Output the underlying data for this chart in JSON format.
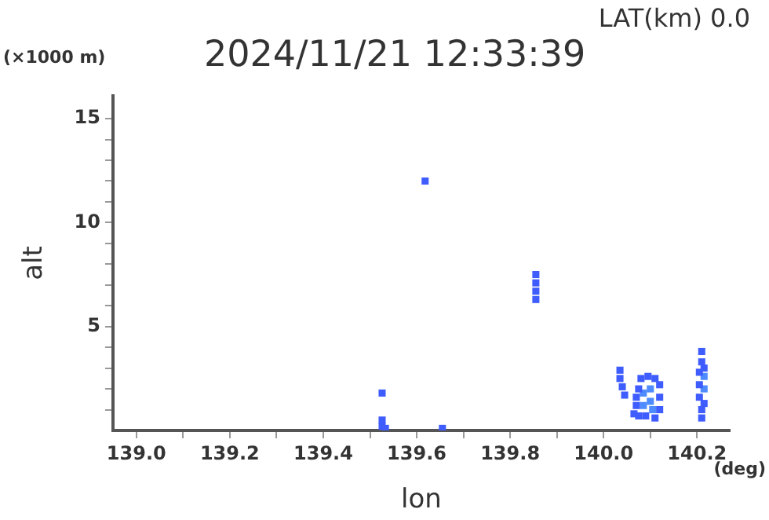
{
  "chart_data": {
    "type": "scatter",
    "title": "2024/11/21 12:33:39",
    "xlabel": "lon",
    "ylabel": "alt",
    "annotations": [
      "LAT(km) 0.0",
      "(×1000 m)",
      "(deg)"
    ],
    "xlim": [
      138.95,
      140.27
    ],
    "ylim": [
      0,
      16.1
    ],
    "xticks": [
      {
        "value": 139.0,
        "label": "139.0"
      },
      {
        "value": 139.1,
        "label": null
      },
      {
        "value": 139.2,
        "label": "139.2"
      },
      {
        "value": 139.3,
        "label": null
      },
      {
        "value": 139.4,
        "label": "139.4"
      },
      {
        "value": 139.5,
        "label": null
      },
      {
        "value": 139.6,
        "label": "139.6"
      },
      {
        "value": 139.7,
        "label": null
      },
      {
        "value": 139.8,
        "label": "139.8"
      },
      {
        "value": 139.9,
        "label": null
      },
      {
        "value": 140.0,
        "label": "140.0"
      },
      {
        "value": 140.1,
        "label": null
      },
      {
        "value": 140.2,
        "label": "140.2"
      }
    ],
    "yticks": [
      {
        "value": 1,
        "label": null
      },
      {
        "value": 2,
        "label": null
      },
      {
        "value": 3,
        "label": null
      },
      {
        "value": 4,
        "label": null
      },
      5,
      {
        "value": 6,
        "label": null
      },
      {
        "value": 7,
        "label": null
      },
      {
        "value": 8,
        "label": null
      },
      {
        "value": 9,
        "label": null
      },
      10,
      {
        "value": 11,
        "label": null
      },
      {
        "value": 12,
        "label": null
      },
      {
        "value": 13,
        "label": null
      },
      {
        "value": 14,
        "label": null
      },
      15
    ],
    "grid": false,
    "legend": false,
    "marker": "square",
    "series": [
      {
        "color": "#3f5cff",
        "x": [
          139.618,
          139.855,
          139.855,
          139.855,
          139.855,
          139.526,
          139.526,
          139.526,
          139.533,
          139.655,
          140.035,
          140.035,
          140.04,
          140.045,
          140.065,
          140.07,
          140.07,
          140.075,
          140.08,
          140.095,
          140.11,
          140.12,
          140.12,
          140.12,
          140.11,
          140.09,
          140.075,
          140.21,
          140.21,
          140.205,
          140.205,
          140.205,
          140.21,
          140.21,
          140.215,
          140.215
        ],
        "values": [
          12.0,
          6.3,
          6.7,
          7.1,
          7.5,
          1.8,
          0.2,
          0.5,
          0.1,
          0.1,
          2.9,
          2.5,
          2.1,
          1.7,
          0.8,
          1.2,
          1.6,
          2.0,
          2.5,
          2.6,
          2.5,
          2.2,
          1.6,
          1.0,
          0.6,
          0.7,
          0.7,
          3.8,
          3.3,
          2.8,
          2.2,
          1.6,
          1.0,
          0.6,
          1.3,
          3.0
        ]
      },
      {
        "color": "#4d8bff",
        "x": [
          140.085,
          140.085,
          140.1,
          140.1,
          140.105,
          140.215,
          140.215
        ],
        "values": [
          1.2,
          1.8,
          1.4,
          2.0,
          1.0,
          2.0,
          2.6
        ]
      }
    ]
  }
}
